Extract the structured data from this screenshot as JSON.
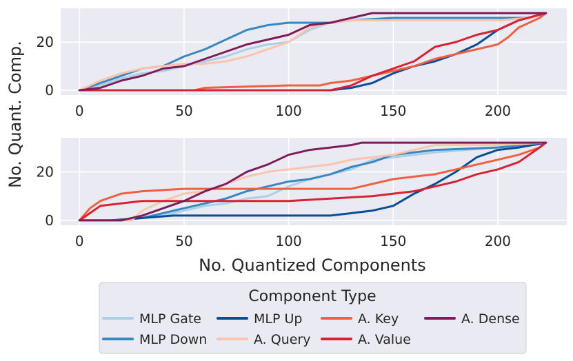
{
  "colors": {
    "background": "#eaeaf2",
    "grid": "#ffffff",
    "mlp_gate": "#abd0e6",
    "mlp_down": "#3787c0",
    "mlp_up": "#084d96",
    "a_query": "#fbc4ab",
    "a_key": "#f0603f",
    "a_value": "#d92231",
    "a_dense": "#801b5b"
  },
  "figure": {
    "ylabel": "No. Quant. Comp.",
    "xlabel": "No. Quantized Components"
  },
  "legend": {
    "title": "Component Type",
    "placement": "lower-center"
  },
  "chart_data": [
    {
      "type": "line",
      "panel": "top",
      "xlim": [
        -9,
        233
      ],
      "ylim": [
        -2,
        34
      ],
      "xticks": [
        "0",
        "50",
        "100",
        "150",
        "200"
      ],
      "xtick_values": [
        0,
        50,
        100,
        150,
        200
      ],
      "yticks": [
        "0",
        "20"
      ],
      "ytick_values": [
        0,
        20
      ],
      "series": [
        {
          "name": "MLP Gate",
          "color_key": "mlp_gate",
          "x": [
            0,
            10,
            20,
            30,
            40,
            50,
            60,
            70,
            80,
            90,
            100,
            110,
            120,
            130,
            150,
            200,
            215,
            223
          ],
          "y": [
            0,
            2,
            5,
            7,
            8,
            10,
            12,
            14,
            17,
            19,
            20,
            25,
            28,
            29,
            29,
            29,
            30,
            32
          ]
        },
        {
          "name": "MLP Down",
          "color_key": "mlp_down",
          "x": [
            0,
            10,
            20,
            30,
            40,
            50,
            60,
            70,
            80,
            90,
            100,
            110,
            120,
            130,
            150,
            200,
            215,
            223
          ],
          "y": [
            0,
            3,
            6,
            9,
            10,
            14,
            17,
            21,
            25,
            27,
            28,
            28,
            28,
            29,
            30,
            30,
            30,
            32
          ]
        },
        {
          "name": "MLP Up",
          "color_key": "mlp_up",
          "x": [
            0,
            120,
            130,
            140,
            150,
            160,
            170,
            180,
            190,
            200,
            210,
            223
          ],
          "y": [
            0,
            0,
            1,
            3,
            7,
            10,
            12,
            15,
            19,
            25,
            29,
            32
          ]
        },
        {
          "name": "A. Query",
          "color_key": "a_query",
          "x": [
            0,
            10,
            20,
            30,
            40,
            50,
            60,
            70,
            80,
            90,
            100,
            110,
            120,
            130,
            150,
            200,
            215,
            223
          ],
          "y": [
            0,
            4,
            7,
            9,
            10,
            11,
            11,
            12,
            14,
            17,
            20,
            26,
            28,
            29,
            29,
            29,
            30,
            32
          ]
        },
        {
          "name": "A. Key",
          "color_key": "a_key",
          "x": [
            0,
            20,
            55,
            60,
            100,
            115,
            120,
            130,
            140,
            150,
            160,
            170,
            180,
            190,
            200,
            205,
            210,
            220,
            223
          ],
          "y": [
            0,
            0,
            0,
            1,
            2,
            2,
            3,
            4,
            6,
            8,
            10,
            13,
            15,
            17,
            19,
            22,
            26,
            30,
            32
          ]
        },
        {
          "name": "A. Value",
          "color_key": "a_value",
          "x": [
            0,
            30,
            60,
            120,
            130,
            140,
            150,
            160,
            170,
            180,
            190,
            200,
            210,
            223
          ],
          "y": [
            0,
            0,
            0,
            0,
            2,
            6,
            9,
            12,
            18,
            20,
            23,
            25,
            29,
            32
          ]
        },
        {
          "name": "A. Dense",
          "color_key": "a_dense",
          "x": [
            0,
            10,
            20,
            30,
            40,
            50,
            60,
            70,
            80,
            90,
            100,
            110,
            120,
            130,
            140,
            150,
            200,
            223
          ],
          "y": [
            0,
            1,
            4,
            6,
            9,
            10,
            13,
            16,
            19,
            21,
            23,
            27,
            28,
            30,
            32,
            32,
            32,
            32
          ]
        }
      ]
    },
    {
      "type": "line",
      "panel": "bottom",
      "xlim": [
        -9,
        233
      ],
      "ylim": [
        -2,
        34
      ],
      "xticks": [
        "0",
        "50",
        "100",
        "150",
        "200"
      ],
      "xtick_values": [
        0,
        50,
        100,
        150,
        200
      ],
      "yticks": [
        "0",
        "20"
      ],
      "ytick_values": [
        0,
        20
      ],
      "series": [
        {
          "name": "MLP Gate",
          "color_key": "mlp_gate",
          "x": [
            0,
            20,
            30,
            40,
            50,
            60,
            70,
            80,
            90,
            100,
            110,
            120,
            130,
            140,
            150,
            170,
            200,
            223
          ],
          "y": [
            0,
            0,
            1,
            2,
            4,
            6,
            7,
            9,
            10,
            14,
            17,
            19,
            21,
            25,
            26,
            28,
            30,
            32
          ]
        },
        {
          "name": "MLP Down",
          "color_key": "mlp_down",
          "x": [
            0,
            20,
            30,
            40,
            50,
            60,
            70,
            80,
            90,
            100,
            110,
            120,
            130,
            140,
            150,
            170,
            200,
            223
          ],
          "y": [
            0,
            0,
            1,
            3,
            5,
            7,
            9,
            12,
            14,
            16,
            17,
            19,
            22,
            24,
            27,
            29,
            30,
            32
          ]
        },
        {
          "name": "MLP Up",
          "color_key": "mlp_up",
          "x": [
            0,
            15,
            30,
            45,
            60,
            80,
            100,
            120,
            130,
            140,
            150,
            160,
            170,
            180,
            190,
            200,
            210,
            223
          ],
          "y": [
            0,
            0,
            1,
            2,
            2,
            2,
            2,
            2,
            3,
            4,
            6,
            11,
            15,
            20,
            26,
            29,
            30,
            32
          ]
        },
        {
          "name": "A. Query",
          "color_key": "a_query",
          "x": [
            0,
            25,
            30,
            40,
            50,
            60,
            70,
            80,
            90,
            100,
            110,
            120,
            130,
            140,
            150,
            160,
            170,
            200,
            223
          ],
          "y": [
            0,
            0,
            4,
            8,
            11,
            12,
            15,
            18,
            20,
            21,
            22,
            23,
            25,
            26,
            27,
            29,
            31,
            31,
            32
          ]
        },
        {
          "name": "A. Key",
          "color_key": "a_key",
          "x": [
            0,
            5,
            10,
            20,
            30,
            50,
            80,
            100,
            130,
            140,
            150,
            160,
            170,
            180,
            190,
            200,
            210,
            220,
            223
          ],
          "y": [
            0,
            5,
            8,
            11,
            12,
            13,
            13,
            13,
            13,
            15,
            17,
            18,
            19,
            21,
            23,
            25,
            27,
            30,
            32
          ]
        },
        {
          "name": "A. Value",
          "color_key": "a_value",
          "x": [
            0,
            5,
            10,
            20,
            30,
            50,
            80,
            100,
            120,
            140,
            150,
            160,
            170,
            180,
            190,
            200,
            210,
            220,
            223
          ],
          "y": [
            0,
            3,
            6,
            7,
            8,
            8,
            8,
            8,
            9,
            10,
            11,
            12,
            14,
            16,
            19,
            21,
            24,
            30,
            32
          ]
        },
        {
          "name": "A. Dense",
          "color_key": "a_dense",
          "x": [
            0,
            20,
            30,
            40,
            50,
            60,
            70,
            80,
            90,
            100,
            110,
            120,
            130,
            135,
            223
          ],
          "y": [
            0,
            0,
            2,
            5,
            8,
            12,
            15,
            20,
            23,
            27,
            29,
            30,
            31,
            32,
            32
          ]
        }
      ]
    }
  ],
  "legend_rows": [
    [
      "MLP Gate",
      "MLP Up",
      "A. Key",
      "A. Dense"
    ],
    [
      "MLP Down",
      "A. Query",
      "A. Value"
    ]
  ]
}
